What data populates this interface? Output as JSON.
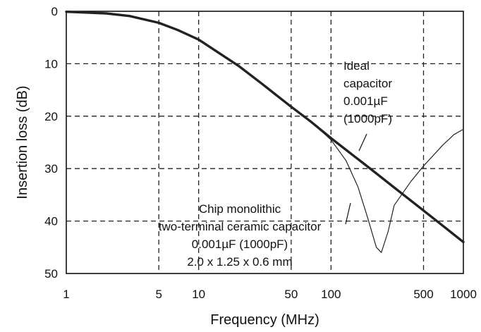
{
  "chart_data": {
    "type": "line",
    "x_scale": "log",
    "xlabel": "Frequency (MHz)",
    "ylabel": "Insertion loss (dB)",
    "xlim": [
      1,
      1000
    ],
    "ylim": [
      0,
      50
    ],
    "y_inverted": true,
    "grid": true,
    "x_ticks": [
      1,
      5,
      10,
      50,
      100,
      500,
      1000
    ],
    "x_tick_labels": [
      "1",
      "5",
      "10",
      "50",
      "100",
      "500",
      "1000"
    ],
    "y_ticks": [
      0,
      10,
      20,
      30,
      40,
      50
    ],
    "y_tick_labels": [
      "0",
      "10",
      "20",
      "30",
      "40",
      "50"
    ],
    "series": [
      {
        "name": "Ideal capacitor",
        "color": "#222222",
        "x": [
          1,
          2,
          3,
          5,
          7,
          10,
          20,
          30,
          50,
          70,
          100,
          200,
          300,
          500,
          700,
          1000
        ],
        "y": [
          0.1,
          0.4,
          0.9,
          2.2,
          3.6,
          5.4,
          10.4,
          13.8,
          18.2,
          21.0,
          24.2,
          30.1,
          33.6,
          38.0,
          40.9,
          44.0
        ]
      },
      {
        "name": "Chip monolithic two-terminal ceramic capacitor",
        "color": "#222222",
        "x": [
          1,
          2,
          3,
          5,
          7,
          10,
          20,
          30,
          50,
          70,
          100,
          130,
          160,
          190,
          220,
          240,
          270,
          300,
          400,
          500,
          700,
          850,
          1000
        ],
        "y": [
          0.1,
          0.4,
          0.9,
          2.2,
          3.6,
          5.4,
          10.4,
          13.8,
          18.2,
          21.0,
          24.5,
          28.5,
          33.5,
          39.5,
          45.0,
          46.0,
          42.0,
          37.0,
          32.5,
          29.5,
          25.5,
          23.5,
          22.5
        ]
      }
    ],
    "annotations": [
      {
        "lines": [
          "Ideal",
          "capacitor",
          "0.001µF",
          "(1000pF)"
        ]
      },
      {
        "lines": [
          "Chip monolithic",
          "two-terminal ceramic capacitor",
          "0.001µF (1000pF)",
          "2.0 x 1.25 x 0.6 mm"
        ]
      }
    ]
  }
}
